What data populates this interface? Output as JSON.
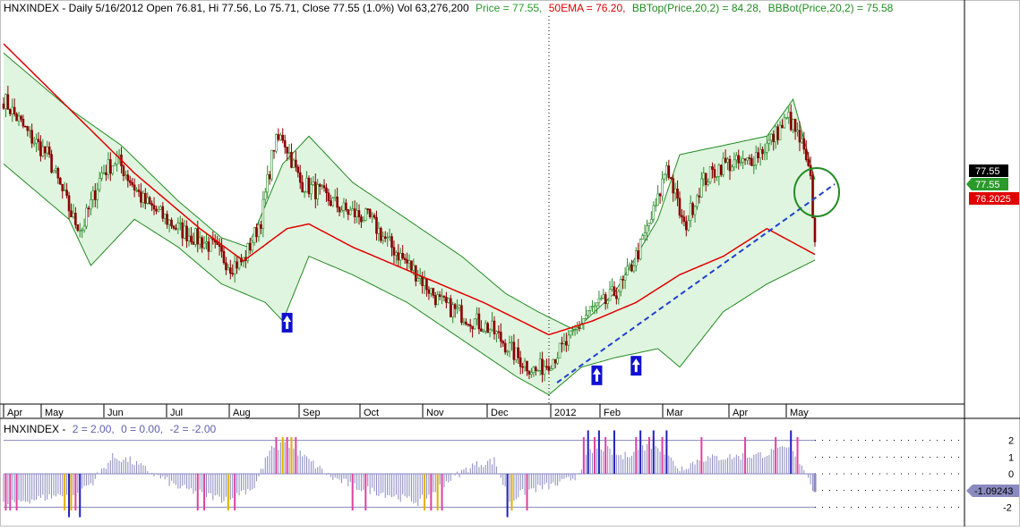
{
  "header": {
    "symbol_info": "HNXINDEX - Daily 5/16/2012 Open 76.81, Hi 77.56, Lo 75.71, Close 77.55 (1.0%) Vol 63,276,200",
    "price_label": "Price = 77.55,",
    "ema_label": "50EMA = 76.20,",
    "bbtop_label": "BBTop(Price,20,2) = 84.28,",
    "bbbot_label": "BBBot(Price,20,2) = 75.58"
  },
  "osc_header": {
    "prefix": "HNXINDEX -",
    "v1": "2 = 2.00,",
    "v2": "0 = 0.00,",
    "v3": "-2 = -2.00"
  },
  "colors": {
    "price_up": "#2a8a2a",
    "price_down": "#8b0000",
    "ema": "#e00000",
    "band": "#228b22",
    "band_fill": "#e0f5e0",
    "trendline": "#1f3fd0",
    "osc_bar": "#8a8ac0",
    "osc_pink": "#e040a0",
    "osc_blue": "#2020c0",
    "osc_yellow": "#e0b000",
    "annotation": "#228b22"
  },
  "chart_data": [
    {
      "type": "candlestick",
      "ylim": [
        60,
        102
      ],
      "x_ticks": [
        "Apr",
        "May",
        "Jun",
        "Jul",
        "Aug",
        "Sep",
        "Oct",
        "Nov",
        "Dec",
        "2012",
        "Feb",
        "Mar",
        "Apr",
        "May"
      ],
      "series": [
        {
          "name": "Price",
          "anchors": [
            [
              0,
              93
            ],
            [
              12,
              89
            ],
            [
              20,
              87
            ],
            [
              32,
              80
            ],
            [
              36,
              79
            ],
            [
              45,
              85
            ],
            [
              52,
              86.5
            ],
            [
              64,
              82
            ],
            [
              80,
              79
            ],
            [
              96,
              77
            ],
            [
              104,
              75
            ],
            [
              110,
              75.5
            ],
            [
              118,
              80
            ],
            [
              124,
              88
            ],
            [
              128,
              89
            ],
            [
              136,
              84
            ],
            [
              144,
              83
            ],
            [
              156,
              81
            ],
            [
              168,
              80
            ],
            [
              176,
              77.5
            ],
            [
              190,
              74
            ],
            [
              200,
              71
            ],
            [
              212,
              69.5
            ],
            [
              224,
              68
            ],
            [
              236,
              65
            ],
            [
              244,
              63.5
            ],
            [
              252,
              65
            ],
            [
              260,
              67
            ],
            [
              268,
              70
            ],
            [
              276,
              71
            ],
            [
              284,
              73
            ],
            [
              292,
              77
            ],
            [
              300,
              82
            ],
            [
              304,
              86
            ],
            [
              312,
              79
            ],
            [
              320,
              84
            ],
            [
              330,
              86
            ],
            [
              340,
              86
            ],
            [
              350,
              88
            ],
            [
              360,
              91
            ],
            [
              366,
              88
            ],
            [
              370,
              84
            ],
            [
              372,
              77.55
            ]
          ]
        },
        {
          "name": "50EMA",
          "anchors": [
            [
              0,
              99
            ],
            [
              30,
              92
            ],
            [
              60,
              85
            ],
            [
              90,
              79
            ],
            [
              110,
              75.5
            ],
            [
              130,
              79
            ],
            [
              140,
              79.5
            ],
            [
              160,
              77
            ],
            [
              190,
              74
            ],
            [
              220,
              71
            ],
            [
              250,
              67.5
            ],
            [
              270,
              69
            ],
            [
              290,
              71
            ],
            [
              310,
              74
            ],
            [
              330,
              76
            ],
            [
              350,
              79
            ],
            [
              372,
              76.2
            ]
          ]
        },
        {
          "name": "BBTop(Price,20,2)",
          "anchors": [
            [
              0,
              98
            ],
            [
              30,
              92
            ],
            [
              54,
              88
            ],
            [
              80,
              82
            ],
            [
              100,
              78
            ],
            [
              112,
              77
            ],
            [
              128,
              86
            ],
            [
              140,
              89
            ],
            [
              160,
              84
            ],
            [
              185,
              80
            ],
            [
              210,
              76
            ],
            [
              230,
              72
            ],
            [
              245,
              70
            ],
            [
              262,
              68
            ],
            [
              280,
              72
            ],
            [
              300,
              80
            ],
            [
              310,
              87
            ],
            [
              330,
              88
            ],
            [
              350,
              89
            ],
            [
              362,
              93
            ],
            [
              372,
              84.28
            ]
          ]
        },
        {
          "name": "BBBot(Price,20,2)",
          "anchors": [
            [
              0,
              86
            ],
            [
              30,
              80
            ],
            [
              40,
              75
            ],
            [
              60,
              80
            ],
            [
              80,
              77
            ],
            [
              100,
              73
            ],
            [
              120,
              71
            ],
            [
              128,
              69
            ],
            [
              140,
              76
            ],
            [
              160,
              74
            ],
            [
              185,
              71
            ],
            [
              210,
              67
            ],
            [
              235,
              63
            ],
            [
              250,
              61
            ],
            [
              265,
              64
            ],
            [
              280,
              65
            ],
            [
              300,
              66
            ],
            [
              310,
              64
            ],
            [
              330,
              70
            ],
            [
              350,
              73
            ],
            [
              372,
              75.58
            ]
          ]
        }
      ],
      "last_price_tags": [
        "77.55",
        "77.55",
        "76.2025"
      ],
      "buy_arrow_indices": [
        130,
        272,
        290
      ]
    },
    {
      "type": "bar",
      "ylim": [
        -3,
        3
      ],
      "y_ticks": [
        "2",
        "1",
        "0",
        "-1",
        "-2"
      ],
      "reference_lines": [
        2,
        0,
        -2
      ],
      "last_value_tag": "-1.09243",
      "anchors": [
        [
          0,
          -1.8
        ],
        [
          15,
          -1.5
        ],
        [
          30,
          -1.2
        ],
        [
          40,
          -0.6
        ],
        [
          50,
          1.0
        ],
        [
          58,
          0.8
        ],
        [
          66,
          0.2
        ],
        [
          80,
          -0.8
        ],
        [
          100,
          -1.5
        ],
        [
          115,
          -0.8
        ],
        [
          122,
          1.4
        ],
        [
          130,
          1.8
        ],
        [
          136,
          1.2
        ],
        [
          150,
          -0.2
        ],
        [
          162,
          -0.8
        ],
        [
          175,
          -1.2
        ],
        [
          190,
          -1.7
        ],
        [
          205,
          -0.3
        ],
        [
          215,
          0.5
        ],
        [
          225,
          0.8
        ],
        [
          232,
          -1.6
        ],
        [
          240,
          -1.0
        ],
        [
          255,
          -0.6
        ],
        [
          262,
          -0.2
        ],
        [
          268,
          1.2
        ],
        [
          274,
          1.6
        ],
        [
          284,
          1.0
        ],
        [
          292,
          1.6
        ],
        [
          300,
          1.7
        ],
        [
          310,
          0.3
        ],
        [
          320,
          0.9
        ],
        [
          330,
          1.0
        ],
        [
          345,
          1.1
        ],
        [
          360,
          1.5
        ],
        [
          366,
          0.6
        ],
        [
          372,
          -1.09
        ]
      ],
      "special_bars": [
        {
          "i": 1,
          "c": "pink"
        },
        {
          "i": 3,
          "c": "pink"
        },
        {
          "i": 6,
          "c": "pink"
        },
        {
          "i": 28,
          "c": "yellow"
        },
        {
          "i": 30,
          "c": "blue"
        },
        {
          "i": 31,
          "c": "yellow"
        },
        {
          "i": 33,
          "c": "pink"
        },
        {
          "i": 35,
          "c": "blue"
        },
        {
          "i": 89,
          "c": "pink"
        },
        {
          "i": 92,
          "c": "pink"
        },
        {
          "i": 103,
          "c": "yellow"
        },
        {
          "i": 106,
          "c": "pink"
        },
        {
          "i": 125,
          "c": "pink"
        },
        {
          "i": 128,
          "c": "yellow"
        },
        {
          "i": 130,
          "c": "pink"
        },
        {
          "i": 132,
          "c": "yellow"
        },
        {
          "i": 134,
          "c": "pink"
        },
        {
          "i": 160,
          "c": "pink"
        },
        {
          "i": 166,
          "c": "pink"
        },
        {
          "i": 193,
          "c": "yellow"
        },
        {
          "i": 196,
          "c": "pink"
        },
        {
          "i": 199,
          "c": "yellow"
        },
        {
          "i": 201,
          "c": "pink"
        },
        {
          "i": 231,
          "c": "blue"
        },
        {
          "i": 233,
          "c": "yellow"
        },
        {
          "i": 240,
          "c": "pink"
        },
        {
          "i": 266,
          "c": "pink"
        },
        {
          "i": 268,
          "c": "blue"
        },
        {
          "i": 271,
          "c": "pink"
        },
        {
          "i": 273,
          "c": "blue"
        },
        {
          "i": 276,
          "c": "pink"
        },
        {
          "i": 280,
          "c": "blue"
        },
        {
          "i": 290,
          "c": "pink"
        },
        {
          "i": 292,
          "c": "blue"
        },
        {
          "i": 296,
          "c": "pink"
        },
        {
          "i": 298,
          "c": "blue"
        },
        {
          "i": 302,
          "c": "pink"
        },
        {
          "i": 304,
          "c": "blue"
        },
        {
          "i": 320,
          "c": "pink"
        },
        {
          "i": 340,
          "c": "pink"
        },
        {
          "i": 354,
          "c": "pink"
        },
        {
          "i": 361,
          "c": "blue"
        },
        {
          "i": 364,
          "c": "pink"
        }
      ]
    }
  ]
}
